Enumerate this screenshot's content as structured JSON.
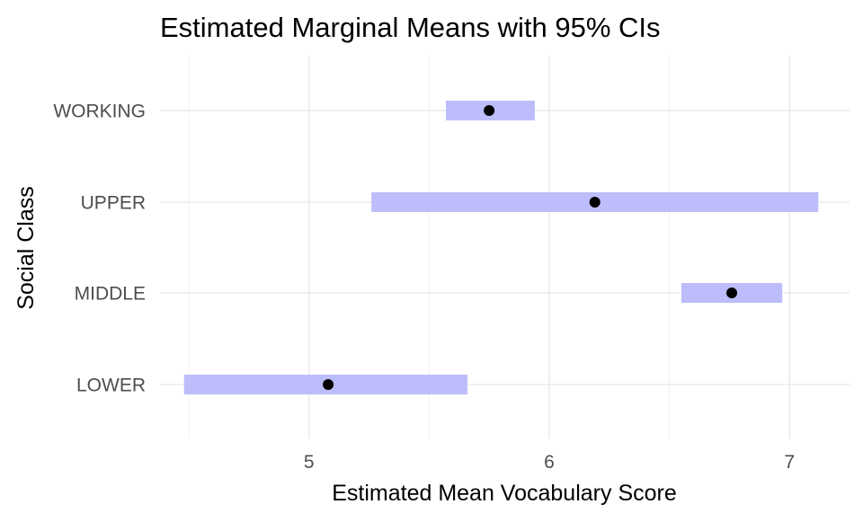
{
  "chart_data": {
    "type": "interval",
    "title": "Estimated Marginal Means with 95% CIs",
    "xlabel": "Estimated Mean Vocabulary Score",
    "ylabel": "Social Class",
    "categories": [
      "LOWER",
      "MIDDLE",
      "UPPER",
      "WORKING"
    ],
    "estimates": [
      5.08,
      6.76,
      6.19,
      5.75
    ],
    "lower": [
      4.48,
      6.55,
      5.26,
      5.57
    ],
    "upper": [
      5.66,
      6.97,
      7.12,
      5.94
    ],
    "xlim": [
      4.38,
      7.25
    ],
    "x_ticks": [
      5,
      6,
      7
    ],
    "x_tick_labels": [
      "5",
      "6",
      "7"
    ],
    "x_minor_ticks": [
      4.5,
      5.5,
      6.5
    ],
    "grid": true,
    "colors": {
      "ci_band": "#bdbdfb",
      "point": "#000000",
      "grid": "#ebebeb"
    }
  }
}
